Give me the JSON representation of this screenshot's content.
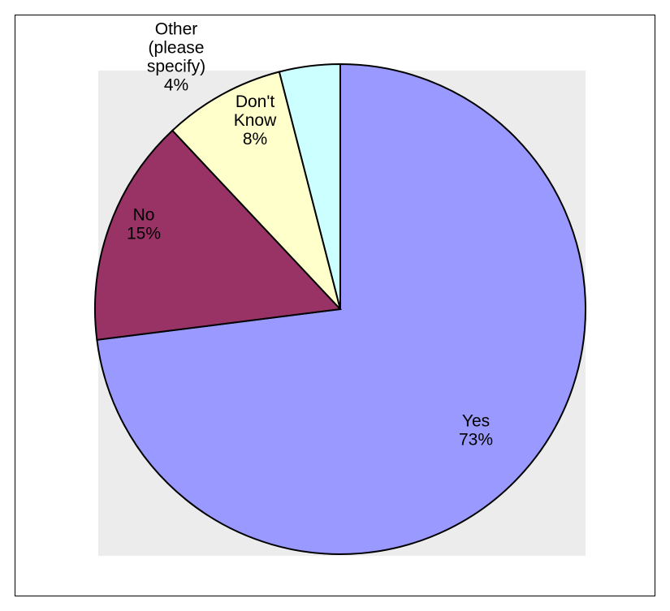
{
  "chart_data": {
    "type": "pie",
    "start_angle_deg": 0,
    "direction": "clockwise",
    "slices": [
      {
        "label": "Yes",
        "percent_label": "73%",
        "value": 73,
        "color": "#9999ff"
      },
      {
        "label": "No",
        "percent_label": "15%",
        "value": 15,
        "color": "#993366"
      },
      {
        "label": "Don't Know",
        "label_lines": [
          "Don't",
          "Know"
        ],
        "percent_label": "8%",
        "value": 8,
        "color": "#ffffcc"
      },
      {
        "label": "Other (please specify)",
        "label_lines": [
          "Other",
          "(please",
          "specify)"
        ],
        "percent_label": "4%",
        "value": 4,
        "color": "#ccffff"
      }
    ],
    "plot_background": "#ececec",
    "legend": "none"
  }
}
